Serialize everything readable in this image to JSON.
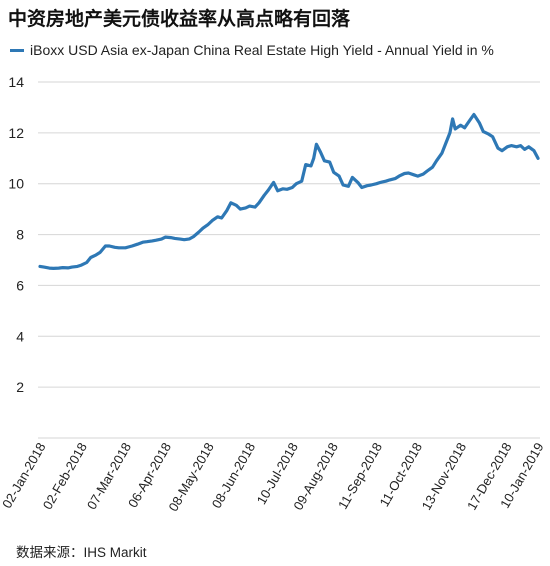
{
  "title": "中资房地产美元债收益率从高点略有回落",
  "source": "数据来源：IHS Markit",
  "colors": {
    "series": "#2E78B5",
    "grid": "#d6d6d6",
    "text": "#222222"
  },
  "chart_data": {
    "type": "line",
    "title": "中资房地产美元债收益率从高点略有回落",
    "ylim": [
      0,
      14
    ],
    "yticks": [
      2,
      4,
      6,
      8,
      10,
      12,
      14
    ],
    "grid": "horizontal",
    "legend_position": "top-left",
    "x_tick_labels": [
      "02-Jan-2018",
      "02-Feb-2018",
      "07-Mar-2018",
      "06-Apr-2018",
      "08-May-2018",
      "08-Jun-2018",
      "10-Jul-2018",
      "09-Aug-2018",
      "11-Sep-2018",
      "11-Oct-2018",
      "13-Nov-2018",
      "17-Dec-2018",
      "10-Jan-2019"
    ],
    "series": [
      {
        "name": "iBoxx USD Asia ex-Japan China Real Estate High Yield - Annual Yield in %",
        "color": "#2E78B5",
        "points": [
          [
            "2018-01-02",
            6.75
          ],
          [
            "2018-01-05",
            6.72
          ],
          [
            "2018-01-09",
            6.68
          ],
          [
            "2018-01-12",
            6.67
          ],
          [
            "2018-01-16",
            6.68
          ],
          [
            "2018-01-19",
            6.7
          ],
          [
            "2018-01-23",
            6.69
          ],
          [
            "2018-01-26",
            6.72
          ],
          [
            "2018-01-30",
            6.75
          ],
          [
            "2018-02-02",
            6.8
          ],
          [
            "2018-02-06",
            6.9
          ],
          [
            "2018-02-09",
            7.1
          ],
          [
            "2018-02-13",
            7.2
          ],
          [
            "2018-02-16",
            7.3
          ],
          [
            "2018-02-20",
            7.55
          ],
          [
            "2018-02-23",
            7.55
          ],
          [
            "2018-02-27",
            7.5
          ],
          [
            "2018-03-02",
            7.48
          ],
          [
            "2018-03-07",
            7.48
          ],
          [
            "2018-03-12",
            7.55
          ],
          [
            "2018-03-16",
            7.62
          ],
          [
            "2018-03-20",
            7.7
          ],
          [
            "2018-03-23",
            7.72
          ],
          [
            "2018-03-27",
            7.75
          ],
          [
            "2018-03-30",
            7.78
          ],
          [
            "2018-04-03",
            7.82
          ],
          [
            "2018-04-06",
            7.9
          ],
          [
            "2018-04-10",
            7.88
          ],
          [
            "2018-04-13",
            7.85
          ],
          [
            "2018-04-17",
            7.82
          ],
          [
            "2018-04-20",
            7.8
          ],
          [
            "2018-04-24",
            7.83
          ],
          [
            "2018-04-27",
            7.92
          ],
          [
            "2018-05-01",
            8.1
          ],
          [
            "2018-05-04",
            8.25
          ],
          [
            "2018-05-08",
            8.4
          ],
          [
            "2018-05-11",
            8.55
          ],
          [
            "2018-05-15",
            8.7
          ],
          [
            "2018-05-18",
            8.65
          ],
          [
            "2018-05-22",
            8.95
          ],
          [
            "2018-05-25",
            9.25
          ],
          [
            "2018-05-29",
            9.15
          ],
          [
            "2018-06-01",
            9.0
          ],
          [
            "2018-06-05",
            9.05
          ],
          [
            "2018-06-08",
            9.12
          ],
          [
            "2018-06-12",
            9.08
          ],
          [
            "2018-06-15",
            9.25
          ],
          [
            "2018-06-19",
            9.55
          ],
          [
            "2018-06-22",
            9.75
          ],
          [
            "2018-06-26",
            10.05
          ],
          [
            "2018-06-29",
            9.72
          ],
          [
            "2018-07-03",
            9.8
          ],
          [
            "2018-07-06",
            9.78
          ],
          [
            "2018-07-10",
            9.85
          ],
          [
            "2018-07-13",
            10.0
          ],
          [
            "2018-07-17",
            10.1
          ],
          [
            "2018-07-20",
            10.75
          ],
          [
            "2018-07-24",
            10.7
          ],
          [
            "2018-07-26",
            11.0
          ],
          [
            "2018-07-28",
            11.55
          ],
          [
            "2018-07-31",
            11.25
          ],
          [
            "2018-08-03",
            10.9
          ],
          [
            "2018-08-07",
            10.85
          ],
          [
            "2018-08-10",
            10.45
          ],
          [
            "2018-08-14",
            10.3
          ],
          [
            "2018-08-17",
            9.95
          ],
          [
            "2018-08-21",
            9.9
          ],
          [
            "2018-08-24",
            10.25
          ],
          [
            "2018-08-28",
            10.05
          ],
          [
            "2018-08-31",
            9.85
          ],
          [
            "2018-09-04",
            9.92
          ],
          [
            "2018-09-07",
            9.95
          ],
          [
            "2018-09-11",
            10.0
          ],
          [
            "2018-09-14",
            10.05
          ],
          [
            "2018-09-18",
            10.1
          ],
          [
            "2018-09-21",
            10.15
          ],
          [
            "2018-09-25",
            10.2
          ],
          [
            "2018-09-28",
            10.3
          ],
          [
            "2018-10-02",
            10.4
          ],
          [
            "2018-10-05",
            10.42
          ],
          [
            "2018-10-09",
            10.35
          ],
          [
            "2018-10-12",
            10.3
          ],
          [
            "2018-10-16",
            10.38
          ],
          [
            "2018-10-19",
            10.5
          ],
          [
            "2018-10-23",
            10.65
          ],
          [
            "2018-10-26",
            10.9
          ],
          [
            "2018-10-30",
            11.2
          ],
          [
            "2018-11-02",
            11.6
          ],
          [
            "2018-11-05",
            12.0
          ],
          [
            "2018-11-07",
            12.55
          ],
          [
            "2018-11-09",
            12.15
          ],
          [
            "2018-11-13",
            12.3
          ],
          [
            "2018-11-16",
            12.2
          ],
          [
            "2018-11-20",
            12.5
          ],
          [
            "2018-11-23",
            12.72
          ],
          [
            "2018-11-27",
            12.4
          ],
          [
            "2018-11-30",
            12.05
          ],
          [
            "2018-12-04",
            11.95
          ],
          [
            "2018-12-07",
            11.85
          ],
          [
            "2018-12-11",
            11.4
          ],
          [
            "2018-12-14",
            11.3
          ],
          [
            "2018-12-18",
            11.45
          ],
          [
            "2018-12-21",
            11.5
          ],
          [
            "2018-12-25",
            11.45
          ],
          [
            "2018-12-28",
            11.5
          ],
          [
            "2018-12-31",
            11.35
          ],
          [
            "2019-01-03",
            11.45
          ],
          [
            "2019-01-07",
            11.3
          ],
          [
            "2019-01-10",
            11.0
          ]
        ]
      }
    ]
  }
}
